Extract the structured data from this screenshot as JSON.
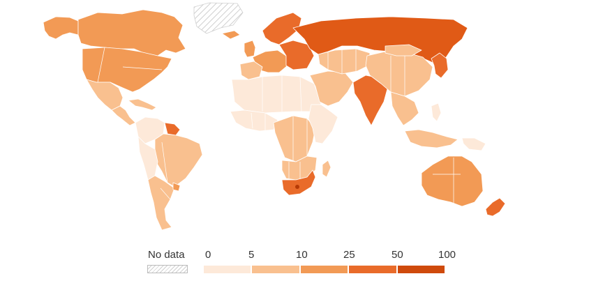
{
  "legend": {
    "no_data_label": "No data",
    "ticks": [
      "0",
      "5",
      "10",
      "25",
      "50",
      "100"
    ],
    "bins": [
      {
        "color": "#fde9d9"
      },
      {
        "color": "#f9c08f"
      },
      {
        "color": "#f29a55"
      },
      {
        "color": "#e96b2a"
      },
      {
        "color": "#cf4a0c"
      }
    ]
  },
  "colors": {
    "background": "#ffffff",
    "border": "#ffffff",
    "no_data_hatch": "#cfcfcf",
    "highlight": "#b53a06"
  },
  "regions": [
    {
      "name": "alaska",
      "fill": "#f29a55"
    },
    {
      "name": "canada",
      "fill": "#f29a55"
    },
    {
      "name": "greenland",
      "fill": "nodata"
    },
    {
      "name": "usa",
      "fill": "#f29a55"
    },
    {
      "name": "mexico",
      "fill": "#f9c08f"
    },
    {
      "name": "central-america",
      "fill": "#f9c08f"
    },
    {
      "name": "caribbean",
      "fill": "#f9c08f"
    },
    {
      "name": "colombia-venezuela",
      "fill": "#fde9d9"
    },
    {
      "name": "guianas",
      "fill": "#e96b2a"
    },
    {
      "name": "brazil",
      "fill": "#f9c08f"
    },
    {
      "name": "andes",
      "fill": "#fde9d9"
    },
    {
      "name": "southern-cone",
      "fill": "#f9c08f"
    },
    {
      "name": "uruguay",
      "fill": "#f29a55"
    },
    {
      "name": "iceland",
      "fill": "#f29a55"
    },
    {
      "name": "uk-ireland",
      "fill": "#f29a55"
    },
    {
      "name": "scandinavia",
      "fill": "#e96b2a"
    },
    {
      "name": "western-europe",
      "fill": "#f29a55"
    },
    {
      "name": "iberia",
      "fill": "#f9c08f"
    },
    {
      "name": "eastern-europe",
      "fill": "#e96b2a"
    },
    {
      "name": "russia",
      "fill": "#e05a16"
    },
    {
      "name": "north-africa",
      "fill": "#fde9d9"
    },
    {
      "name": "west-africa",
      "fill": "#fde9d9"
    },
    {
      "name": "central-africa",
      "fill": "#f9c08f"
    },
    {
      "name": "east-africa",
      "fill": "#fde9d9"
    },
    {
      "name": "southern-africa",
      "fill": "#f9c08f"
    },
    {
      "name": "south-africa",
      "fill": "#e96b2a"
    },
    {
      "name": "madagascar",
      "fill": "#f9c08f"
    },
    {
      "name": "middle-east",
      "fill": "#f9c08f"
    },
    {
      "name": "central-asia",
      "fill": "#f9c08f"
    },
    {
      "name": "india",
      "fill": "#e96b2a"
    },
    {
      "name": "china",
      "fill": "#f9c08f"
    },
    {
      "name": "mongolia",
      "fill": "#f9c08f"
    },
    {
      "name": "korea-japan",
      "fill": "#e96b2a"
    },
    {
      "name": "southeast-asia",
      "fill": "#f9c08f"
    },
    {
      "name": "indonesia",
      "fill": "#f9c08f"
    },
    {
      "name": "philippines",
      "fill": "#fde9d9"
    },
    {
      "name": "papua",
      "fill": "#fde9d9"
    },
    {
      "name": "australia",
      "fill": "#f29a55"
    },
    {
      "name": "new-zealand",
      "fill": "#e96b2a"
    }
  ]
}
